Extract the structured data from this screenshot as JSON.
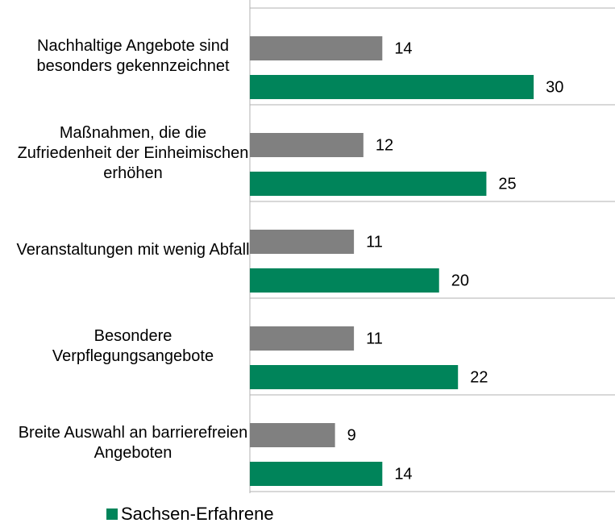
{
  "chart_data": {
    "type": "hbar",
    "categories": [
      "Nachhaltige Angebote sind besonders gekennzeichnet",
      "Maßnahmen, die die Zufriedenheit der Einheimischen erhöhen",
      "Veranstaltungen mit wenig Abfall",
      "Besondere Verpflegungsangebote",
      "Breite Auswahl an barrierefreien Angeboten"
    ],
    "series": [
      {
        "color": "#808080",
        "values": [
          14,
          12,
          11,
          11,
          9
        ]
      },
      {
        "name": "Sachsen-Erfahrene",
        "color": "#00845a",
        "values": [
          30,
          25,
          20,
          22,
          14
        ]
      }
    ],
    "xlim": [
      0,
      38
    ],
    "legend": "bottom"
  }
}
